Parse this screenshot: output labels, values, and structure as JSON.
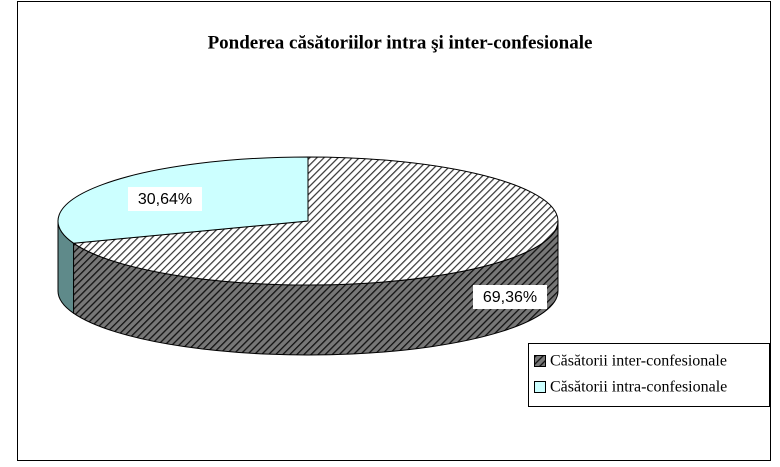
{
  "chart_data": {
    "type": "pie3d",
    "title": "Ponderea căsătoriilor intra şi inter-confesionale",
    "categories": [
      "Căsătorii inter-confesionale",
      "Căsătorii intra-confesionale"
    ],
    "values": [
      69.36,
      30.64
    ],
    "value_labels": [
      "69,36%",
      "30,64%"
    ],
    "colors": [
      "#333333",
      "#ccffff"
    ],
    "patterns": [
      "diagonal",
      "solid"
    ],
    "legend": "right"
  }
}
